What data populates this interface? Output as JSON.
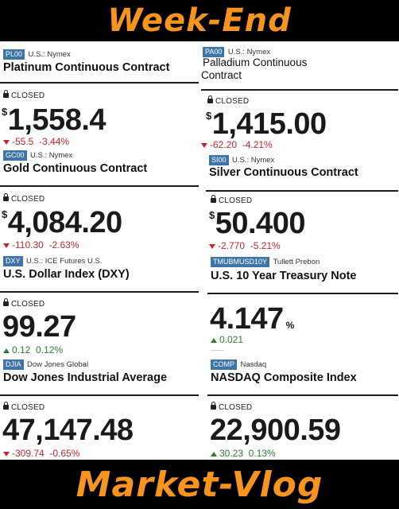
{
  "banner": {
    "top": "Week-End",
    "bottom": "Market-Vlog",
    "accent_color": "#f7941d"
  },
  "closed_label": "CLOSED",
  "currency_symbol": "$",
  "left": {
    "platinum": {
      "ticker": "PL00",
      "exchange": "U.S.: Nymex",
      "name": "Platinum Continuous Contract"
    },
    "gold": {
      "price": "1,558.4",
      "change": "-55.5",
      "change_pct": "-3.44%",
      "ticker": "GC00",
      "exchange": "U.S.: Nymex",
      "name": "Gold Continuous Contract"
    },
    "dxy": {
      "price": "4,084.20",
      "change": "-110.30",
      "change_pct": "-2.63%",
      "ticker": "DXY",
      "exchange": "U.S.: ICE Futures U.S.",
      "name": "U.S. Dollar Index (DXY)"
    },
    "djia": {
      "price": "99.27",
      "change": "0.12",
      "change_pct": "0.12%",
      "ticker": "DJIA",
      "exchange": "Dow Jones Global",
      "name": "Dow Jones Industrial Average"
    },
    "bottom": {
      "price": "47,147.48",
      "change": "-309.74",
      "change_pct": "-0.65%"
    }
  },
  "right": {
    "palladium": {
      "ticker": "PA00",
      "exchange": "U.S.: Nymex",
      "name_line1": "Palladium Continuous",
      "name_line2": "Contract"
    },
    "silver": {
      "price": "1,415.00",
      "change": "-62.20",
      "change_pct": "-4.21%",
      "ticker": "SI00",
      "exchange": "U.S.: Nymex",
      "name": "Silver Continuous Contract"
    },
    "treasury": {
      "price": "50.400",
      "change": "-2.770",
      "change_pct": "-5.21%",
      "ticker": "TMUBMUSD10Y",
      "exchange": "Tullett Prebon",
      "name": "U.S. 10 Year Treasury Note"
    },
    "nasdaq": {
      "price": "4.147",
      "pct_sign": "%",
      "change": "0.021",
      "ticker": "COMP",
      "exchange": "Nasdaq",
      "name": "NASDAQ Composite Index"
    },
    "bottom": {
      "price": "22,900.59",
      "change": "30.23",
      "change_pct": "0.13%"
    }
  }
}
